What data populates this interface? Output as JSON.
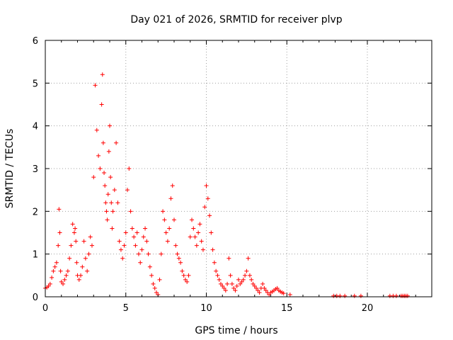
{
  "chart_data": {
    "type": "scatter",
    "title": "Day 021 of 2026, SRMTID for receiver plvp",
    "xlabel": "GPS time / hours",
    "ylabel": "SRMTID / TECUs",
    "xlim": [
      0,
      24
    ],
    "ylim": [
      0,
      6
    ],
    "x_ticks": [
      0,
      5,
      10,
      15,
      20
    ],
    "y_ticks": [
      0,
      1,
      2,
      3,
      4,
      5,
      6
    ],
    "x_tick_labels": [
      "0",
      "5",
      "10",
      "15",
      "20"
    ],
    "y_tick_labels": [
      "0",
      "1",
      "2",
      "3",
      "4",
      "5",
      "6"
    ],
    "grid": true,
    "legend": "none",
    "marker": "+",
    "color": "#ff0000",
    "series": [
      {
        "name": "SRMTID",
        "x": [
          0.0,
          0.1,
          0.2,
          0.3,
          0.4,
          0.5,
          0.6,
          0.7,
          0.8,
          0.85,
          0.9,
          0.95,
          1.0,
          1.1,
          1.2,
          1.3,
          1.4,
          1.5,
          1.6,
          1.7,
          1.8,
          1.85,
          1.9,
          1.95,
          2.0,
          2.1,
          2.2,
          2.3,
          2.4,
          2.5,
          2.6,
          2.7,
          2.8,
          2.9,
          3.0,
          3.1,
          3.2,
          3.3,
          3.4,
          3.5,
          3.55,
          3.6,
          3.65,
          3.7,
          3.75,
          3.8,
          3.85,
          3.9,
          3.95,
          4.0,
          4.05,
          4.1,
          4.15,
          4.2,
          4.3,
          4.4,
          4.5,
          4.6,
          4.7,
          4.8,
          4.9,
          5.0,
          5.1,
          5.2,
          5.3,
          5.4,
          5.5,
          5.6,
          5.7,
          5.8,
          5.9,
          6.0,
          6.1,
          6.2,
          6.3,
          6.4,
          6.5,
          6.6,
          6.7,
          6.8,
          6.9,
          7.0,
          7.1,
          7.2,
          7.3,
          7.4,
          7.5,
          7.6,
          7.7,
          7.8,
          7.9,
          8.0,
          8.1,
          8.2,
          8.3,
          8.4,
          8.5,
          8.6,
          8.7,
          8.8,
          8.9,
          9.0,
          9.1,
          9.2,
          9.3,
          9.4,
          9.5,
          9.6,
          9.7,
          9.8,
          9.9,
          10.0,
          10.1,
          10.2,
          10.3,
          10.4,
          10.5,
          10.6,
          10.7,
          10.8,
          10.9,
          11.0,
          11.1,
          11.2,
          11.3,
          11.4,
          11.5,
          11.6,
          11.7,
          11.8,
          11.9,
          12.0,
          12.1,
          12.2,
          12.3,
          12.4,
          12.5,
          12.6,
          12.7,
          12.8,
          12.9,
          13.0,
          13.1,
          13.2,
          13.3,
          13.4,
          13.5,
          13.6,
          13.7,
          13.8,
          13.9,
          14.0,
          14.1,
          14.2,
          14.3,
          14.4,
          14.5,
          14.6,
          14.7,
          14.8,
          15.2,
          17.9,
          18.1,
          18.3,
          18.6,
          19.2,
          19.6,
          21.4,
          21.6,
          21.8,
          22.1,
          22.2,
          22.3,
          22.4,
          22.5
        ],
        "y": [
          0.2,
          0.22,
          0.25,
          0.3,
          0.45,
          0.6,
          0.7,
          0.8,
          1.2,
          2.05,
          1.5,
          0.6,
          0.35,
          0.3,
          0.4,
          0.5,
          0.6,
          0.9,
          1.2,
          1.7,
          1.5,
          1.6,
          1.3,
          0.8,
          0.5,
          0.4,
          0.5,
          0.7,
          1.3,
          0.9,
          0.6,
          1.0,
          1.4,
          1.2,
          2.8,
          4.95,
          3.9,
          3.3,
          3.0,
          4.5,
          5.2,
          3.6,
          2.9,
          2.6,
          2.2,
          2.0,
          1.8,
          2.4,
          3.4,
          4.0,
          2.8,
          2.2,
          1.6,
          2.0,
          2.5,
          3.6,
          2.2,
          1.3,
          1.1,
          0.9,
          1.2,
          1.5,
          2.5,
          3.0,
          2.0,
          1.6,
          1.4,
          1.2,
          1.5,
          1.0,
          0.8,
          1.1,
          1.4,
          1.6,
          1.3,
          1.0,
          0.7,
          0.5,
          0.3,
          0.2,
          0.1,
          0.05,
          0.4,
          1.0,
          2.0,
          1.8,
          1.5,
          1.3,
          1.6,
          2.3,
          2.6,
          1.8,
          1.2,
          1.0,
          0.9,
          0.8,
          0.6,
          0.5,
          0.4,
          0.35,
          0.5,
          1.4,
          1.8,
          1.6,
          1.4,
          1.2,
          1.5,
          1.7,
          1.3,
          1.1,
          2.1,
          2.6,
          2.3,
          1.9,
          1.5,
          1.1,
          0.8,
          0.6,
          0.5,
          0.4,
          0.3,
          0.25,
          0.2,
          0.15,
          0.3,
          0.9,
          0.5,
          0.3,
          0.2,
          0.15,
          0.25,
          0.4,
          0.3,
          0.35,
          0.4,
          0.5,
          0.6,
          0.9,
          0.5,
          0.4,
          0.3,
          0.25,
          0.2,
          0.15,
          0.1,
          0.2,
          0.3,
          0.2,
          0.15,
          0.1,
          0.05,
          0.1,
          0.12,
          0.15,
          0.18,
          0.2,
          0.15,
          0.12,
          0.1,
          0.08,
          0.05,
          0.02,
          0.02,
          0.02,
          0.02,
          0.02,
          0.02,
          0.02,
          0.02,
          0.02,
          0.02,
          0.02,
          0.02,
          0.02,
          0.02
        ]
      }
    ]
  }
}
